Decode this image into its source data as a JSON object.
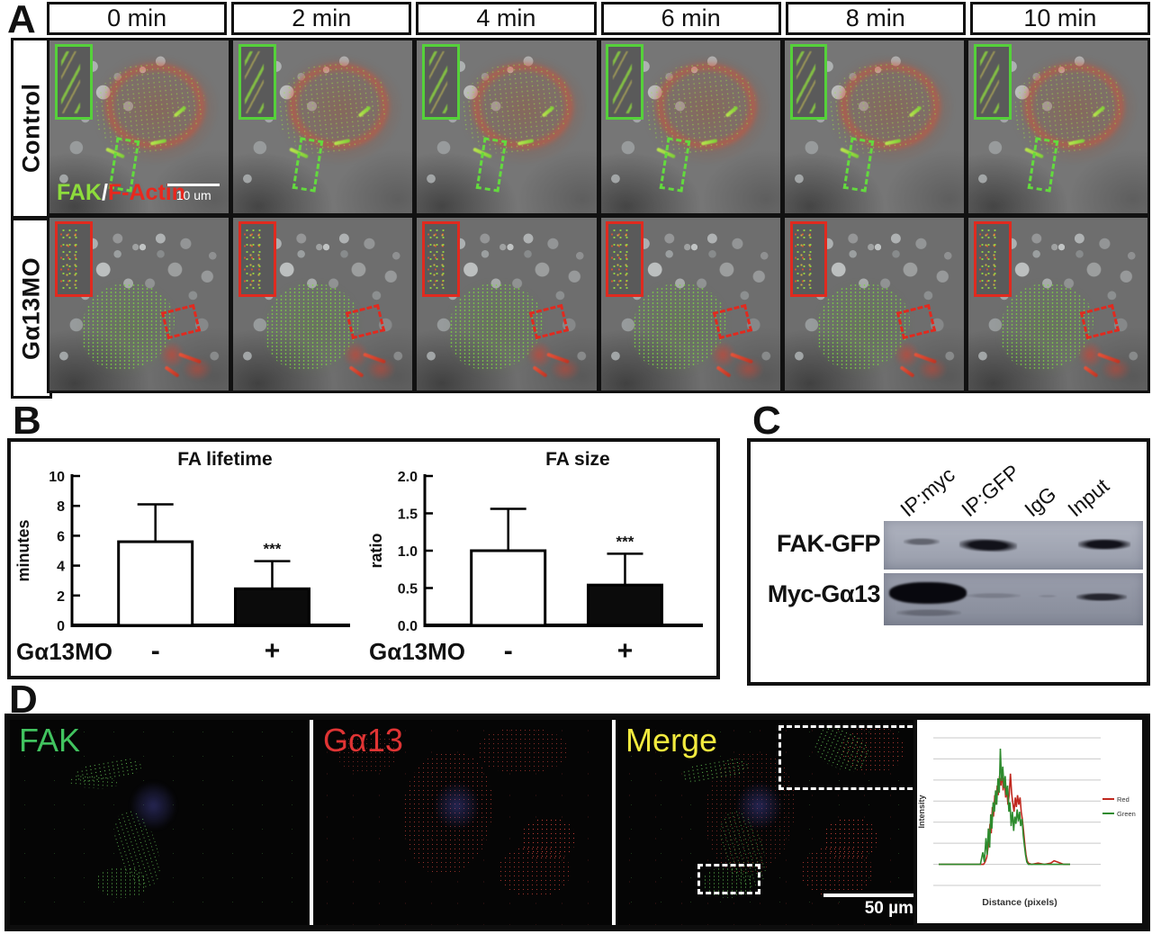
{
  "panels": {
    "A": {
      "label": "A",
      "timepoints": [
        "0 min",
        "2 min",
        "4 min",
        "6 min",
        "8 min",
        "10 min"
      ],
      "row_labels": [
        "Control",
        "Gα13MO"
      ],
      "stain_legend": {
        "green": "FAK",
        "separator": "/",
        "red": "F-Actin"
      },
      "scale_bar": "10 um",
      "colors": {
        "fak_green": "#8ddc3c",
        "factin_red": "#e8281e",
        "inset_green": "#55d13a",
        "inset_red": "#e02a1f"
      }
    },
    "B": {
      "label": "B"
    },
    "C": {
      "label": "C",
      "lane_labels": [
        "IP:myc",
        "IP:GFP",
        "IgG",
        "Input"
      ],
      "row_labels": [
        "FAK-GFP",
        "Myc-Gα13"
      ],
      "band_intensities": {
        "FAK-GFP": [
          0.35,
          0.95,
          0,
          0.9
        ],
        "Myc-Gα13": [
          1.0,
          0.18,
          0.05,
          0.75
        ]
      }
    },
    "D": {
      "label": "D",
      "image_labels": [
        "FAK",
        "Gα13",
        "Merge"
      ],
      "label_colors": [
        "#41c35f",
        "#e03434",
        "#f2ea3e"
      ],
      "scale_bar": "50 µm"
    }
  },
  "chart_data": [
    {
      "type": "bar",
      "title": "FA lifetime",
      "ylabel": "minutes",
      "ylim": [
        0,
        10
      ],
      "yticks": [
        "0",
        "2",
        "4",
        "6",
        "8",
        "10"
      ],
      "group_label": "Gα13MO",
      "categories": [
        "-",
        "+"
      ],
      "values": [
        5.6,
        2.45
      ],
      "errors_up": [
        2.5,
        1.85
      ],
      "significance": [
        null,
        "***"
      ],
      "bar_fills": [
        "#ffffff",
        "#0b0b0b"
      ],
      "grid": false,
      "legend": null
    },
    {
      "type": "bar",
      "title": "FA size",
      "ylabel": "ratio",
      "ylim": [
        0,
        2
      ],
      "yticks": [
        "0.0",
        "0.5",
        "1.0",
        "1.5",
        "2.0"
      ],
      "group_label": "Gα13MO",
      "categories": [
        "-",
        "+"
      ],
      "values": [
        1.0,
        0.54
      ],
      "errors_up": [
        0.56,
        0.42
      ],
      "significance": [
        null,
        "***"
      ],
      "bar_fills": [
        "#ffffff",
        "#0b0b0b"
      ],
      "grid": false,
      "legend": null
    },
    {
      "type": "line",
      "title": "",
      "xlabel": "Distance (pixels)",
      "ylabel": "Intensity",
      "legend": [
        "Red",
        "Green"
      ],
      "colors": [
        "#c0281e",
        "#2e8b2e"
      ],
      "gridlines": 8,
      "xlim": [
        0,
        100
      ],
      "ylim": [
        0,
        100
      ],
      "series": [
        {
          "name": "Red",
          "points": [
            [
              0,
              0
            ],
            [
              10,
              0
            ],
            [
              20,
              0
            ],
            [
              26,
              0
            ],
            [
              28,
              0
            ],
            [
              29,
              2
            ],
            [
              30,
              6
            ],
            [
              31,
              16
            ],
            [
              32,
              34
            ],
            [
              32.8,
              26
            ],
            [
              33.5,
              48
            ],
            [
              34.2,
              40
            ],
            [
              35,
              58
            ],
            [
              35.8,
              50
            ],
            [
              36.5,
              66
            ],
            [
              37.2,
              58
            ],
            [
              38,
              74
            ],
            [
              38.8,
              66
            ],
            [
              39.5,
              78
            ],
            [
              40.2,
              62
            ],
            [
              41,
              72
            ],
            [
              41.8,
              56
            ],
            [
              42.5,
              64
            ],
            [
              43.2,
              50
            ],
            [
              44,
              58
            ],
            [
              44.8,
              76
            ],
            [
              45.5,
              60
            ],
            [
              46.2,
              52
            ],
            [
              47,
              44
            ],
            [
              47.8,
              56
            ],
            [
              48.5,
              48
            ],
            [
              49.2,
              58
            ],
            [
              50,
              50
            ],
            [
              50.8,
              56
            ],
            [
              51.5,
              44
            ],
            [
              52.2,
              38
            ],
            [
              53,
              28
            ],
            [
              53.8,
              16
            ],
            [
              54.5,
              8
            ],
            [
              55.2,
              3
            ],
            [
              56,
              1
            ],
            [
              58,
              0
            ],
            [
              62,
              1
            ],
            [
              66,
              0
            ],
            [
              70,
              1
            ],
            [
              72,
              3
            ],
            [
              74,
              2
            ],
            [
              76,
              1
            ],
            [
              78,
              0
            ],
            [
              82,
              0
            ]
          ]
        },
        {
          "name": "Green",
          "points": [
            [
              0,
              0
            ],
            [
              10,
              0
            ],
            [
              20,
              0
            ],
            [
              24,
              0
            ],
            [
              26,
              0
            ],
            [
              27.5,
              10
            ],
            [
              28.5,
              2
            ],
            [
              29.5,
              22
            ],
            [
              30.2,
              8
            ],
            [
              31,
              30
            ],
            [
              31.8,
              14
            ],
            [
              32.5,
              42
            ],
            [
              33.2,
              30
            ],
            [
              34,
              52
            ],
            [
              34.8,
              44
            ],
            [
              35.5,
              62
            ],
            [
              36.2,
              50
            ],
            [
              37,
              72
            ],
            [
              37.8,
              60
            ],
            [
              38.5,
              97
            ],
            [
              39.2,
              70
            ],
            [
              40,
              82
            ],
            [
              40.8,
              64
            ],
            [
              41.5,
              74
            ],
            [
              42.2,
              58
            ],
            [
              43,
              66
            ],
            [
              43.8,
              44
            ],
            [
              44.5,
              52
            ],
            [
              45.2,
              32
            ],
            [
              46,
              44
            ],
            [
              46.8,
              28
            ],
            [
              47.5,
              40
            ],
            [
              48.2,
              34
            ],
            [
              49,
              46
            ],
            [
              49.7,
              36
            ],
            [
              50.5,
              44
            ],
            [
              51.2,
              32
            ],
            [
              52,
              38
            ],
            [
              52.8,
              24
            ],
            [
              53.5,
              16
            ],
            [
              54.2,
              8
            ],
            [
              55,
              2
            ],
            [
              56,
              0
            ],
            [
              60,
              0
            ],
            [
              65,
              0
            ],
            [
              70,
              0
            ],
            [
              75,
              0
            ],
            [
              82,
              0
            ]
          ]
        }
      ]
    }
  ]
}
